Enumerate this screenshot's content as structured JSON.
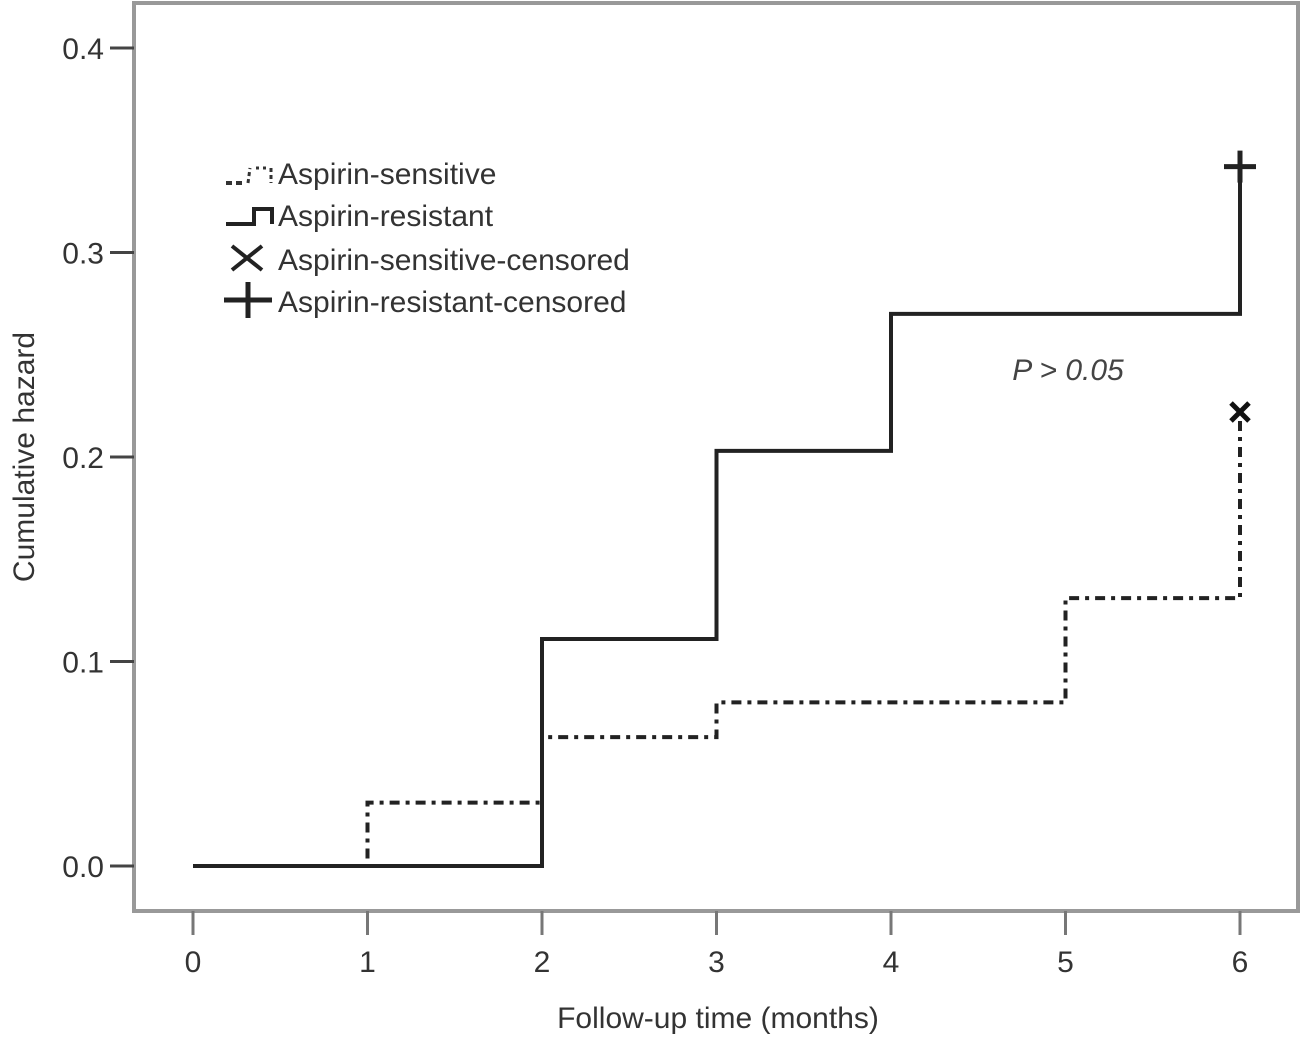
{
  "chart_data": {
    "type": "line",
    "subtype": "step",
    "title": "",
    "xlabel": "Follow-up time (months)",
    "ylabel": "Cumulative hazard",
    "xlim": [
      0,
      6
    ],
    "ylim": [
      0.0,
      0.4
    ],
    "xticks": [
      0,
      1,
      2,
      3,
      4,
      5,
      6
    ],
    "xtick_labels": [
      "0",
      "1",
      "2",
      "3",
      "4",
      "5",
      "6"
    ],
    "yticks": [
      0.0,
      0.1,
      0.2,
      0.3,
      0.4
    ],
    "ytick_labels": [
      "0.0",
      "0.1",
      "0.2",
      "0.3",
      "0.4"
    ],
    "grid": false,
    "legend_position": "upper-left",
    "series": [
      {
        "name": "Aspirin-sensitive",
        "line_style": "dash-dot",
        "x": [
          0,
          1,
          2,
          3,
          5,
          6
        ],
        "values": [
          0.0,
          0.031,
          0.063,
          0.08,
          0.131,
          0.222
        ]
      },
      {
        "name": "Aspirin-resistant",
        "line_style": "solid",
        "x": [
          0,
          2,
          3,
          4,
          6
        ],
        "values": [
          0.0,
          0.111,
          0.203,
          0.27,
          0.342
        ]
      }
    ],
    "censored": [
      {
        "name": "Aspirin-sensitive-censored",
        "marker": "x",
        "x": 6,
        "y": 0.222
      },
      {
        "name": "Aspirin-resistant-censored",
        "marker": "+",
        "x": 6,
        "y": 0.342
      }
    ],
    "annotations": [
      {
        "text": "P > 0.05",
        "x": 5.0,
        "y": 0.245,
        "style": "italic"
      }
    ],
    "legend": [
      {
        "label": "Aspirin-sensitive",
        "symbol": "dash-dot-step"
      },
      {
        "label": "Aspirin-resistant",
        "symbol": "solid-step"
      },
      {
        "label": "Aspirin-sensitive-censored",
        "symbol": "x"
      },
      {
        "label": "Aspirin-resistant-censored",
        "symbol": "+"
      }
    ],
    "colors": {
      "frame": "#999999",
      "lines": "#222222",
      "text": "#333333"
    }
  }
}
